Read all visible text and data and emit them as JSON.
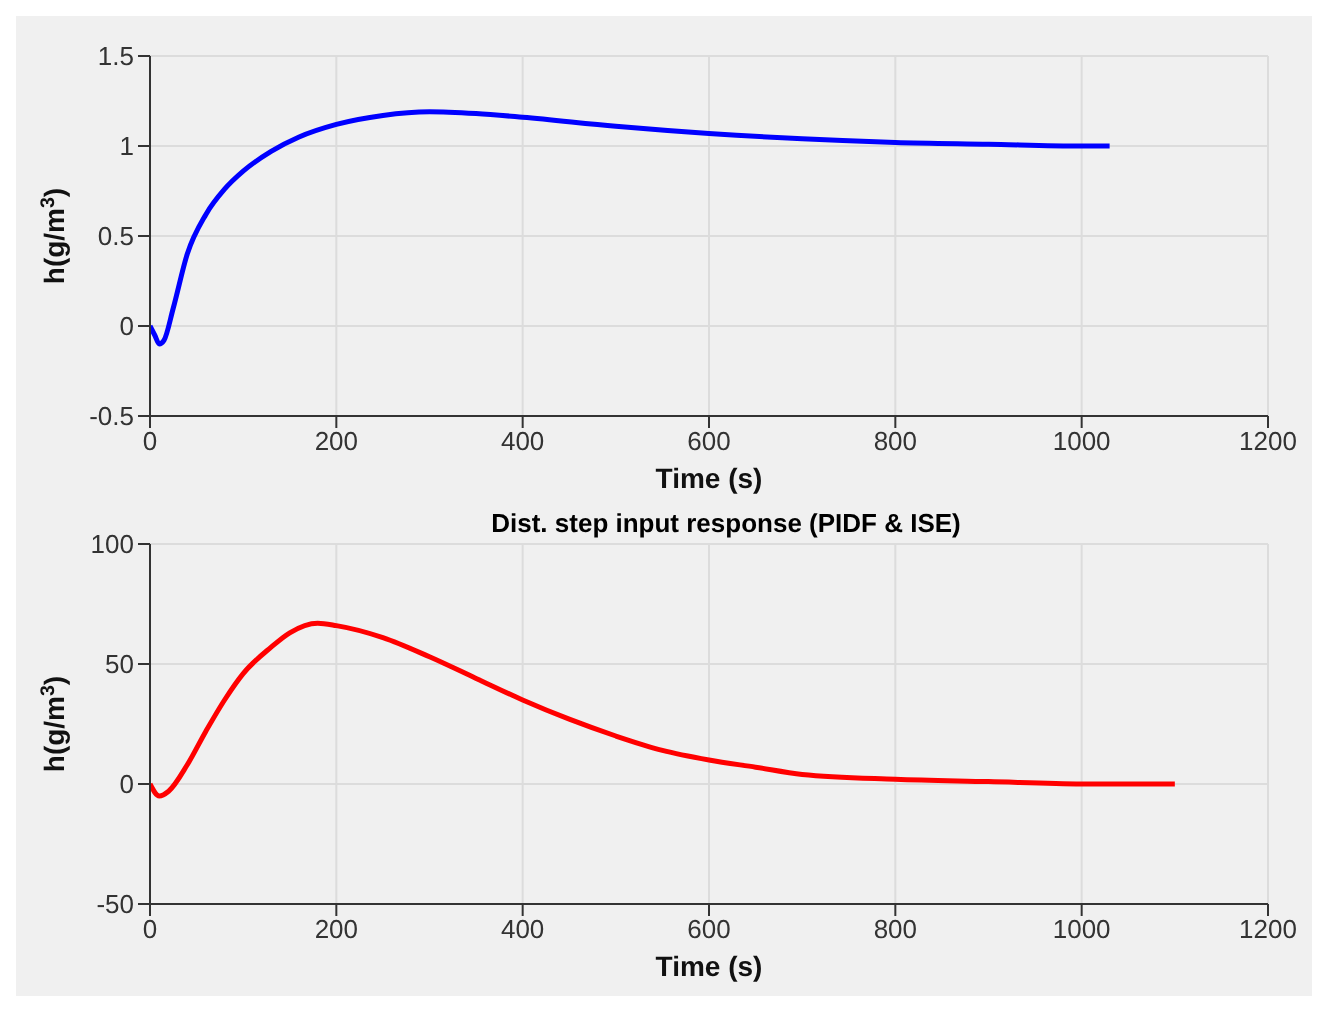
{
  "chart_data": [
    {
      "type": "line",
      "xlabel": "Time (s)",
      "ylabel": "h(g/m$^{3}$)",
      "x": [
        0,
        5,
        10,
        15,
        25,
        40,
        60,
        80,
        100,
        130,
        160,
        200,
        250,
        300,
        350,
        400,
        500,
        600,
        700,
        800,
        900,
        1000,
        1030
      ],
      "series": [
        {
          "color": "#0000ff",
          "values": [
            0,
            -0.05,
            -0.1,
            -0.08,
            0.1,
            0.4,
            0.62,
            0.76,
            0.86,
            0.97,
            1.05,
            1.12,
            1.17,
            1.19,
            1.18,
            1.16,
            1.11,
            1.07,
            1.04,
            1.02,
            1.01,
            1.0,
            1.0
          ]
        }
      ],
      "xlim": [
        0,
        1200
      ],
      "xticks": [
        0,
        200,
        400,
        600,
        800,
        1000,
        1200
      ],
      "ylim": [
        -0.5,
        1.5
      ],
      "yticks": [
        -0.5,
        0,
        0.5,
        1,
        1.5
      ],
      "grid": true
    },
    {
      "type": "line",
      "title": "Dist. step input response (PIDF & ISE)",
      "xlabel": "Time (s)",
      "ylabel": "h(g/m$^{3}$)",
      "x": [
        0,
        10,
        20,
        40,
        60,
        80,
        100,
        130,
        150,
        180,
        200,
        250,
        300,
        350,
        400,
        450,
        500,
        550,
        600,
        650,
        700,
        800,
        900,
        1000,
        1100
      ],
      "series": [
        {
          "color": "#ff0000",
          "values": [
            0,
            -5,
            -3,
            8,
            22,
            35,
            46,
            57,
            63,
            67,
            66,
            61,
            53,
            44,
            35,
            27,
            20,
            14,
            10,
            7,
            4,
            2,
            1,
            0,
            0
          ]
        }
      ],
      "xlim": [
        0,
        1200
      ],
      "xticks": [
        0,
        200,
        400,
        600,
        800,
        1000,
        1200
      ],
      "ylim": [
        -50,
        100
      ],
      "yticks": [
        -50,
        0,
        50,
        100
      ],
      "grid": true
    }
  ]
}
